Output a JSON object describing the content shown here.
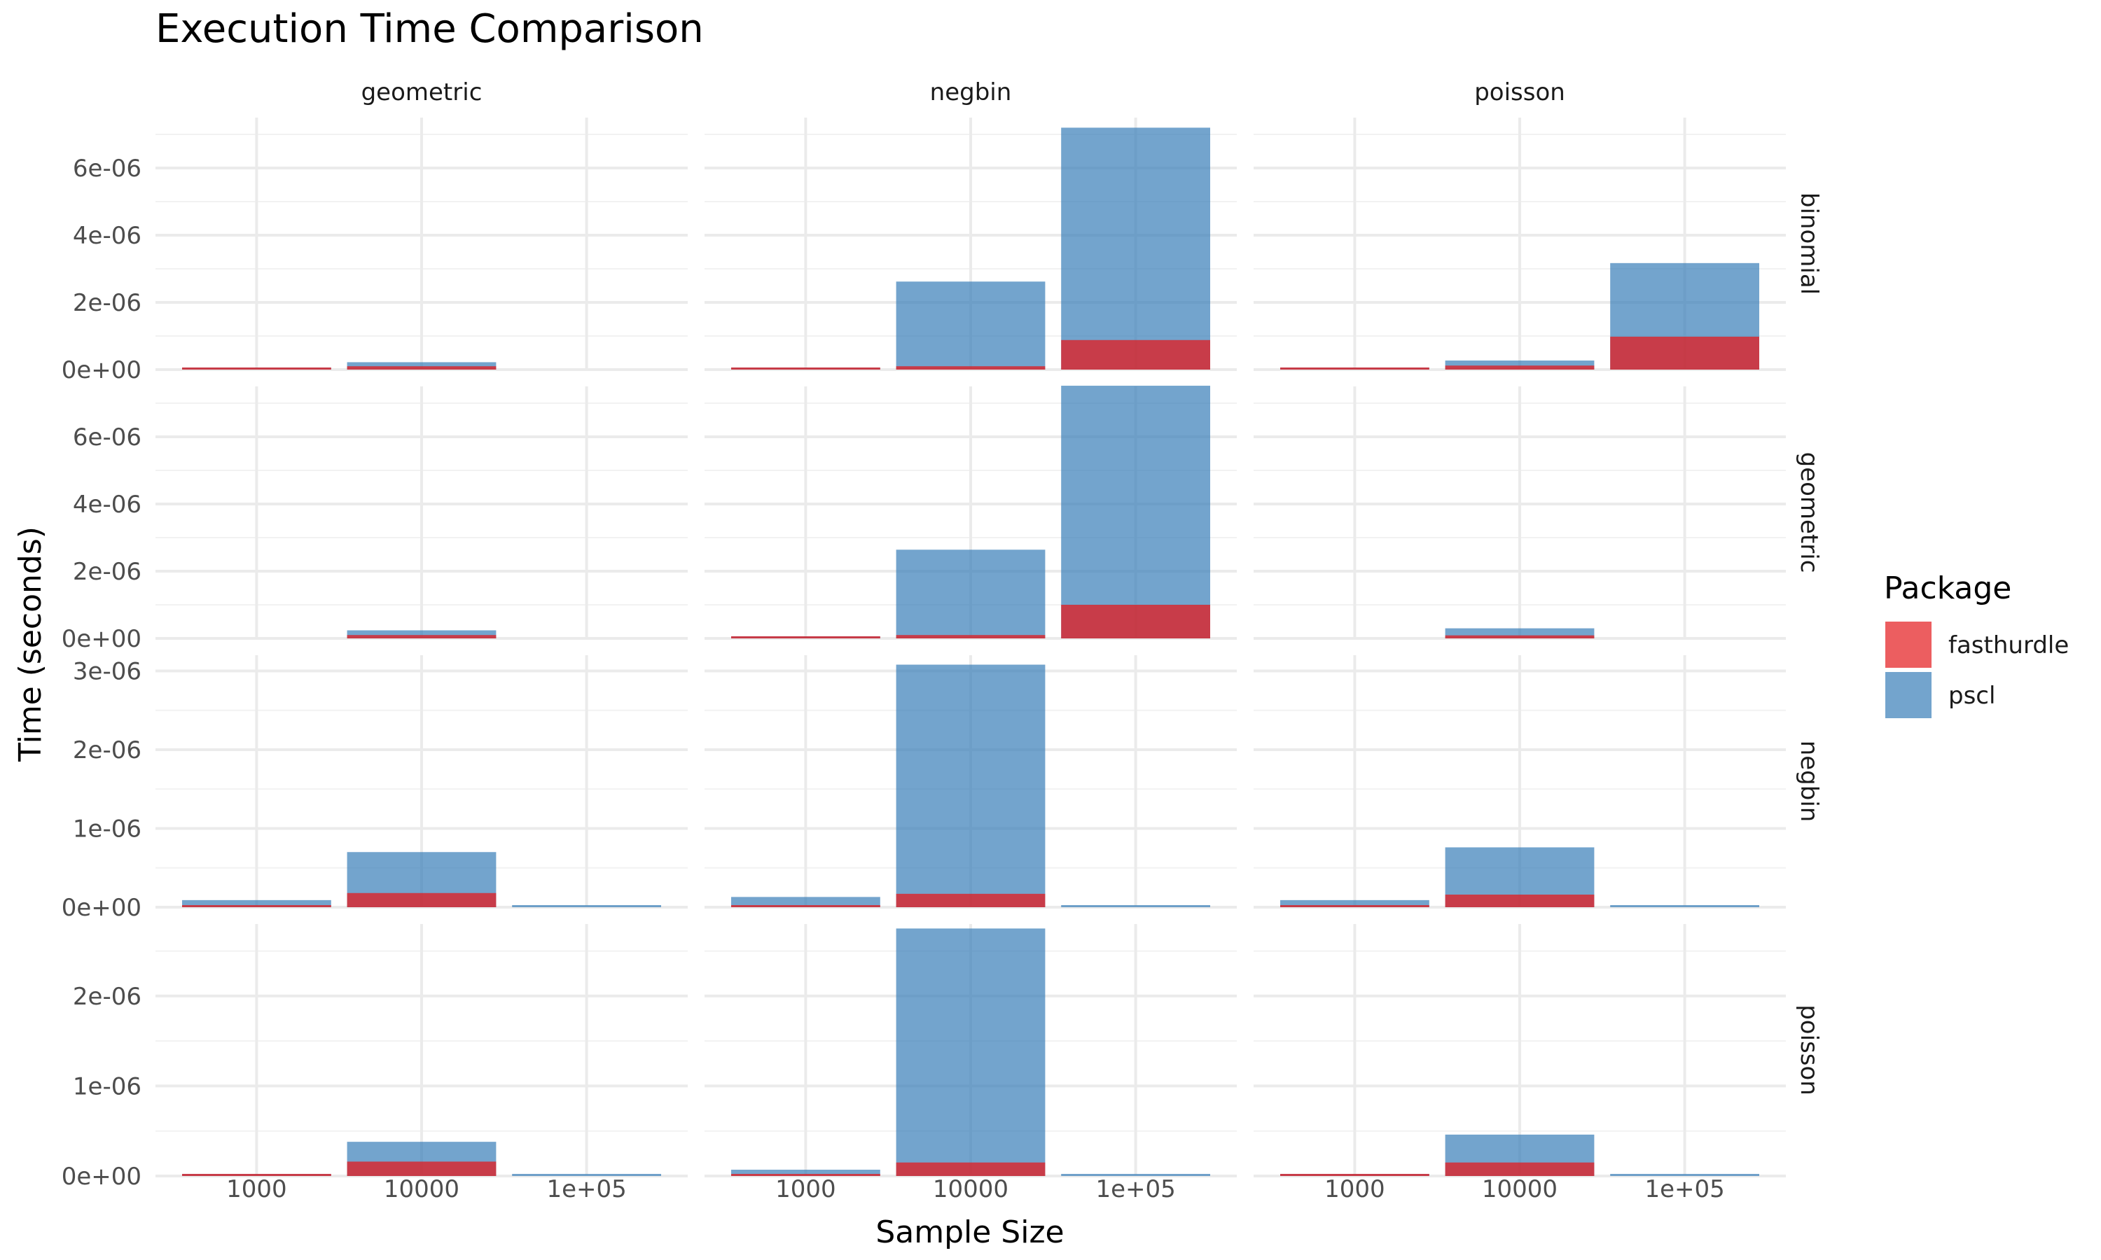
{
  "chart_data": {
    "type": "bar",
    "title": "Execution Time Comparison",
    "xlabel": "Sample Size",
    "ylabel": "Time (seconds)",
    "col_facets": [
      "geometric",
      "negbin",
      "poisson"
    ],
    "row_facets": [
      "binomial",
      "geometric",
      "negbin",
      "poisson"
    ],
    "categories": [
      "1000",
      "10000",
      "1e+05"
    ],
    "legend": {
      "title": "Package",
      "position": "right",
      "entries": [
        {
          "name": "fasthurdle",
          "color": "#e41a1c"
        },
        {
          "name": "pscl",
          "color": "#377eb8"
        }
      ]
    },
    "rows": [
      {
        "facet": "binomial",
        "ylim": [
          0,
          7.5e-06
        ],
        "yticks": [
          0,
          2e-06,
          4e-06,
          6e-06
        ],
        "ytick_labels": [
          "0e+00",
          "2e-06",
          "4e-06",
          "6e-06"
        ],
        "panels": [
          {
            "col": "geometric",
            "series": [
              {
                "name": "fasthurdle",
                "values": [
                  1e-08,
                  1e-07,
                  0
                ]
              },
              {
                "name": "pscl",
                "values": [
                  1e-08,
                  2.2e-07,
                  0
                ]
              }
            ]
          },
          {
            "col": "negbin",
            "series": [
              {
                "name": "fasthurdle",
                "values": [
                  2e-08,
                  1e-07,
                  8.8e-07
                ]
              },
              {
                "name": "pscl",
                "values": [
                  6e-08,
                  2.62e-06,
                  7.2e-06
                ]
              }
            ]
          },
          {
            "col": "poisson",
            "series": [
              {
                "name": "fasthurdle",
                "values": [
                  1e-08,
                  1.2e-07,
                  9.8e-07
                ]
              },
              {
                "name": "pscl",
                "values": [
                  1e-08,
                  2.7e-07,
                  3.17e-06
                ]
              }
            ]
          }
        ]
      },
      {
        "facet": "geometric",
        "ylim": [
          0,
          7.5e-06
        ],
        "yticks": [
          0,
          2e-06,
          4e-06,
          6e-06
        ],
        "ytick_labels": [
          "0e+00",
          "2e-06",
          "4e-06",
          "6e-06"
        ],
        "panels": [
          {
            "col": "geometric",
            "series": [
              {
                "name": "fasthurdle",
                "values": [
                  0,
                  1e-07,
                  0
                ]
              },
              {
                "name": "pscl",
                "values": [
                  0,
                  2.4e-07,
                  0
                ]
              }
            ]
          },
          {
            "col": "negbin",
            "series": [
              {
                "name": "fasthurdle",
                "values": [
                  1e-08,
                  1e-07,
                  1e-06
                ]
              },
              {
                "name": "pscl",
                "values": [
                  5e-08,
                  2.64e-06,
                  7.52e-06
                ]
              }
            ]
          },
          {
            "col": "poisson",
            "series": [
              {
                "name": "fasthurdle",
                "values": [
                  0,
                  9e-08,
                  0
                ]
              },
              {
                "name": "pscl",
                "values": [
                  0,
                  3e-07,
                  0
                ]
              }
            ]
          }
        ]
      },
      {
        "facet": "negbin",
        "ylim": [
          0,
          3.2e-06
        ],
        "yticks": [
          0,
          1e-06,
          2e-06,
          3e-06
        ],
        "ytick_labels": [
          "0e+00",
          "1e-06",
          "2e-06",
          "3e-06"
        ],
        "panels": [
          {
            "col": "geometric",
            "series": [
              {
                "name": "fasthurdle",
                "values": [
                  2e-08,
                  1.8e-07,
                  0
                ]
              },
              {
                "name": "pscl",
                "values": [
                  9e-08,
                  7e-07,
                  1e-08
                ]
              }
            ]
          },
          {
            "col": "negbin",
            "series": [
              {
                "name": "fasthurdle",
                "values": [
                  2e-08,
                  1.7e-07,
                  0
                ]
              },
              {
                "name": "pscl",
                "values": [
                  1.3e-07,
                  3.08e-06,
                  1e-08
                ]
              }
            ]
          },
          {
            "col": "poisson",
            "series": [
              {
                "name": "fasthurdle",
                "values": [
                  2e-08,
                  1.6e-07,
                  0
                ]
              },
              {
                "name": "pscl",
                "values": [
                  9e-08,
                  7.6e-07,
                  1e-08
                ]
              }
            ]
          }
        ]
      },
      {
        "facet": "poisson",
        "ylim": [
          0,
          2.8e-06
        ],
        "yticks": [
          0,
          1e-06,
          2e-06
        ],
        "ytick_labels": [
          "0e+00",
          "1e-06",
          "2e-06"
        ],
        "panels": [
          {
            "col": "geometric",
            "series": [
              {
                "name": "fasthurdle",
                "values": [
                  1e-08,
                  1.6e-07,
                  0
                ]
              },
              {
                "name": "pscl",
                "values": [
                  2e-08,
                  3.8e-07,
                  1e-08
                ]
              }
            ]
          },
          {
            "col": "negbin",
            "series": [
              {
                "name": "fasthurdle",
                "values": [
                  2e-08,
                  1.5e-07,
                  0
                ]
              },
              {
                "name": "pscl",
                "values": [
                  7e-08,
                  2.75e-06,
                  1e-08
                ]
              }
            ]
          },
          {
            "col": "poisson",
            "series": [
              {
                "name": "fasthurdle",
                "values": [
                  1e-08,
                  1.5e-07,
                  0
                ]
              },
              {
                "name": "pscl",
                "values": [
                  2e-08,
                  4.6e-07,
                  1e-08
                ]
              }
            ]
          }
        ]
      }
    ]
  }
}
